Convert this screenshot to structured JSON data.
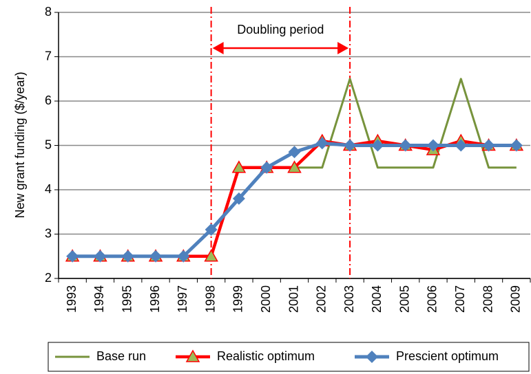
{
  "chart_data": {
    "type": "line",
    "annotation": "Doubling period",
    "ylabel": "New grant funding ($/year)",
    "categories": [
      "1993",
      "1994",
      "1995",
      "1996",
      "1997",
      "1998",
      "1999",
      "2000",
      "2001",
      "2002",
      "2003",
      "2004",
      "2005",
      "2006",
      "2007",
      "2008",
      "2009"
    ],
    "series": [
      {
        "name": "Base run",
        "color": "#77933c",
        "values": [
          2.5,
          2.5,
          2.5,
          2.5,
          2.5,
          2.5,
          4.5,
          4.5,
          4.5,
          4.5,
          6.5,
          4.5,
          4.5,
          4.5,
          6.5,
          4.5,
          4.5
        ]
      },
      {
        "name": "Realistic optimum",
        "color": "#ff0000",
        "marker": "triangle",
        "marker_color": "#9bbb59",
        "values": [
          2.5,
          2.5,
          2.5,
          2.5,
          2.5,
          2.5,
          4.5,
          4.5,
          4.5,
          5.1,
          5.0,
          5.1,
          5.0,
          4.9,
          5.1,
          5.0,
          5.0
        ]
      },
      {
        "name": "Prescient optimum",
        "color": "#4f81bd",
        "marker": "diamond",
        "marker_color": "#4f81bd",
        "values": [
          2.5,
          2.5,
          2.5,
          2.5,
          2.5,
          3.1,
          3.8,
          4.5,
          4.85,
          5.05,
          5.0,
          5.0,
          5.0,
          5.0,
          5.0,
          5.0,
          5.0
        ]
      }
    ],
    "ylim": [
      2,
      8
    ],
    "yticks": [
      2,
      3,
      4,
      5,
      6,
      7,
      8
    ],
    "grid": true,
    "legend": "bottom"
  }
}
